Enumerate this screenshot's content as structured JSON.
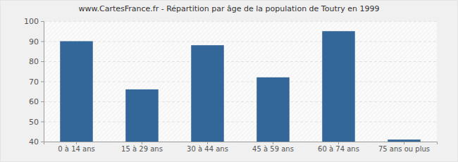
{
  "chart_data": {
    "type": "bar",
    "title": "www.CartesFrance.fr - Répartition par âge de la population de Toutry en 1999",
    "categories": [
      "0 à 14 ans",
      "15 à 29 ans",
      "30 à 44 ans",
      "45 à 59 ans",
      "60 à 74 ans",
      "75 ans ou plus"
    ],
    "values": [
      90,
      66,
      88,
      72,
      95,
      41
    ],
    "color": "#336699",
    "ylim": [
      40,
      100
    ],
    "yticks": [
      40,
      50,
      60,
      70,
      80,
      90,
      100
    ],
    "grid": true
  }
}
